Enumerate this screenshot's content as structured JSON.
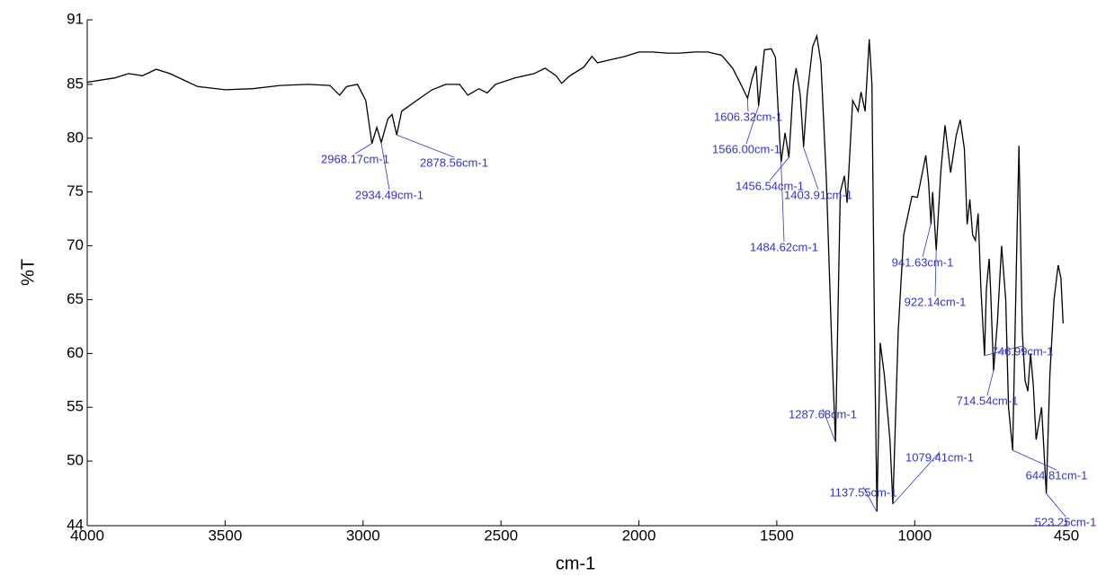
{
  "chart_data": {
    "type": "line",
    "xlabel": "cm-1",
    "ylabel": "%T",
    "xlim": [
      4000,
      450
    ],
    "ylim": [
      44,
      91
    ],
    "xticks": [
      4000,
      3500,
      3000,
      2500,
      2000,
      1500,
      1000,
      450
    ],
    "yticks": [
      44,
      50,
      55,
      60,
      65,
      70,
      75,
      80,
      85,
      91
    ],
    "color": "#000000",
    "annotation_color": "#3333cc",
    "x": [
      4000,
      3900,
      3850,
      3800,
      3750,
      3700,
      3650,
      3600,
      3500,
      3400,
      3300,
      3200,
      3120,
      3085,
      3060,
      3020,
      2990,
      2968,
      2950,
      2934,
      2910,
      2895,
      2878,
      2860,
      2800,
      2750,
      2700,
      2650,
      2620,
      2580,
      2550,
      2520,
      2450,
      2380,
      2340,
      2300,
      2280,
      2250,
      2200,
      2170,
      2150,
      2100,
      2050,
      2000,
      1950,
      1900,
      1850,
      1800,
      1750,
      1700,
      1660,
      1630,
      1606,
      1590,
      1575,
      1566,
      1545,
      1520,
      1505,
      1490,
      1484,
      1470,
      1456,
      1440,
      1430,
      1415,
      1403,
      1390,
      1370,
      1355,
      1340,
      1320,
      1300,
      1287,
      1270,
      1255,
      1245,
      1225,
      1205,
      1195,
      1180,
      1165,
      1155,
      1145,
      1137,
      1125,
      1110,
      1090,
      1079,
      1060,
      1040,
      1010,
      990,
      960,
      950,
      941,
      935,
      922,
      905,
      890,
      870,
      850,
      835,
      820,
      810,
      800,
      790,
      780,
      770,
      760,
      747,
      740,
      730,
      725,
      714,
      700,
      685,
      670,
      660,
      645,
      630,
      622,
      610,
      600,
      590,
      580,
      570,
      560,
      540,
      523,
      510,
      495,
      480,
      470,
      462
    ],
    "values": [
      85.2,
      85.6,
      86.0,
      85.8,
      86.4,
      86.0,
      85.4,
      84.8,
      84.5,
      84.6,
      84.9,
      85.0,
      84.9,
      84.0,
      84.8,
      85.0,
      83.5,
      79.5,
      81.0,
      79.6,
      81.8,
      82.2,
      80.3,
      82.5,
      83.6,
      84.5,
      85.0,
      85.0,
      84.0,
      84.6,
      84.2,
      85.0,
      85.6,
      86.0,
      86.5,
      85.8,
      85.1,
      85.8,
      86.6,
      87.6,
      87.0,
      87.3,
      87.6,
      88.0,
      88.0,
      87.9,
      87.9,
      88.0,
      88.0,
      87.7,
      86.5,
      85.0,
      83.7,
      85.5,
      86.7,
      83.0,
      88.2,
      88.3,
      87.5,
      80.0,
      77.8,
      80.5,
      78.2,
      85.0,
      86.5,
      84.0,
      79.2,
      84.0,
      88.5,
      89.5,
      87.0,
      76.0,
      60.0,
      51.8,
      75.0,
      76.5,
      74.0,
      83.5,
      82.5,
      84.3,
      82.5,
      89.2,
      85.0,
      60.0,
      45.3,
      61.0,
      58.0,
      52.0,
      46.0,
      62.0,
      71.0,
      74.6,
      74.5,
      78.4,
      76.0,
      72.0,
      75.0,
      69.6,
      77.0,
      81.2,
      76.8,
      80.2,
      81.7,
      79.0,
      72.0,
      74.3,
      71.0,
      70.5,
      73.0,
      66.0,
      59.8,
      66.0,
      68.8,
      66.0,
      58.4,
      63.0,
      70.0,
      65.0,
      55.0,
      51.0,
      70.0,
      79.3,
      62.0,
      57.5,
      56.5,
      60.0,
      57.0,
      52.0,
      55.0,
      47.0,
      58.0,
      65.0,
      68.2,
      67.0,
      62.8
    ],
    "annotations": [
      {
        "x": 2968.17,
        "y": 79.5,
        "label": "2968.17cm-1"
      },
      {
        "x": 2934.49,
        "y": 79.6,
        "label": "2934.49cm-1"
      },
      {
        "x": 2878.56,
        "y": 80.3,
        "label": "2878.56cm-1"
      },
      {
        "x": 1606.32,
        "y": 83.7,
        "label": "1606.32cm-1"
      },
      {
        "x": 1566.0,
        "y": 83.0,
        "label": "1566.00cm-1"
      },
      {
        "x": 1456.54,
        "y": 78.2,
        "label": "1456.54cm-1"
      },
      {
        "x": 1403.91,
        "y": 79.2,
        "label": "1403.91cm-1"
      },
      {
        "x": 1484.62,
        "y": 77.8,
        "label": "1484.62cm-1"
      },
      {
        "x": 941.63,
        "y": 72.0,
        "label": "941.63cm-1"
      },
      {
        "x": 922.14,
        "y": 69.6,
        "label": "922.14cm-1"
      },
      {
        "x": 746.99,
        "y": 59.8,
        "label": "746.99cm-1"
      },
      {
        "x": 714.54,
        "y": 58.4,
        "label": "714.54cm-1"
      },
      {
        "x": 1287.68,
        "y": 51.8,
        "label": "1287.68cm-1"
      },
      {
        "x": 1079.41,
        "y": 46.0,
        "label": "1079.41cm-1"
      },
      {
        "x": 1137.55,
        "y": 45.3,
        "label": "1137.55cm-1"
      },
      {
        "x": 644.81,
        "y": 51.0,
        "label": "644.81cm-1"
      },
      {
        "x": 523.25,
        "y": 47.0,
        "label": "523.25cm-1"
      }
    ]
  }
}
